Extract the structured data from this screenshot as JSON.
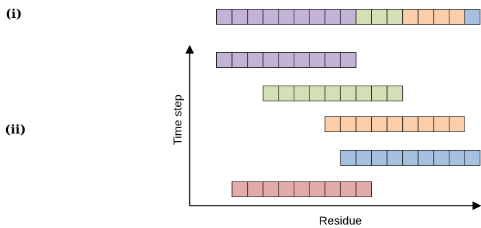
{
  "panels": {
    "i": "(i)",
    "ii": "(ii)"
  },
  "axes": {
    "x_title": "Residue",
    "y_title": "Time step"
  },
  "colors": {
    "purple": "#c3b3d6",
    "green": "#d3e0b5",
    "orange": "#fbcda8",
    "blue": "#a6c1df",
    "red": "#e3aaaa",
    "stroke": "#222222"
  },
  "sequence_row": {
    "segments": [
      {
        "color": "purple",
        "cells": 9
      },
      {
        "color": "green",
        "cells": 3
      },
      {
        "color": "orange",
        "cells": 4
      },
      {
        "color": "blue",
        "cells": 1
      }
    ]
  },
  "time_steps": [
    {
      "color": "purple",
      "start_residue": 0,
      "cells": 9
    },
    {
      "color": "green",
      "start_residue": 3,
      "cells": 9
    },
    {
      "color": "orange",
      "start_residue": 7,
      "cells": 9
    },
    {
      "color": "blue",
      "start_residue": 8,
      "cells": 9
    },
    {
      "color": "red",
      "start_residue": 1,
      "cells": 9
    }
  ]
}
